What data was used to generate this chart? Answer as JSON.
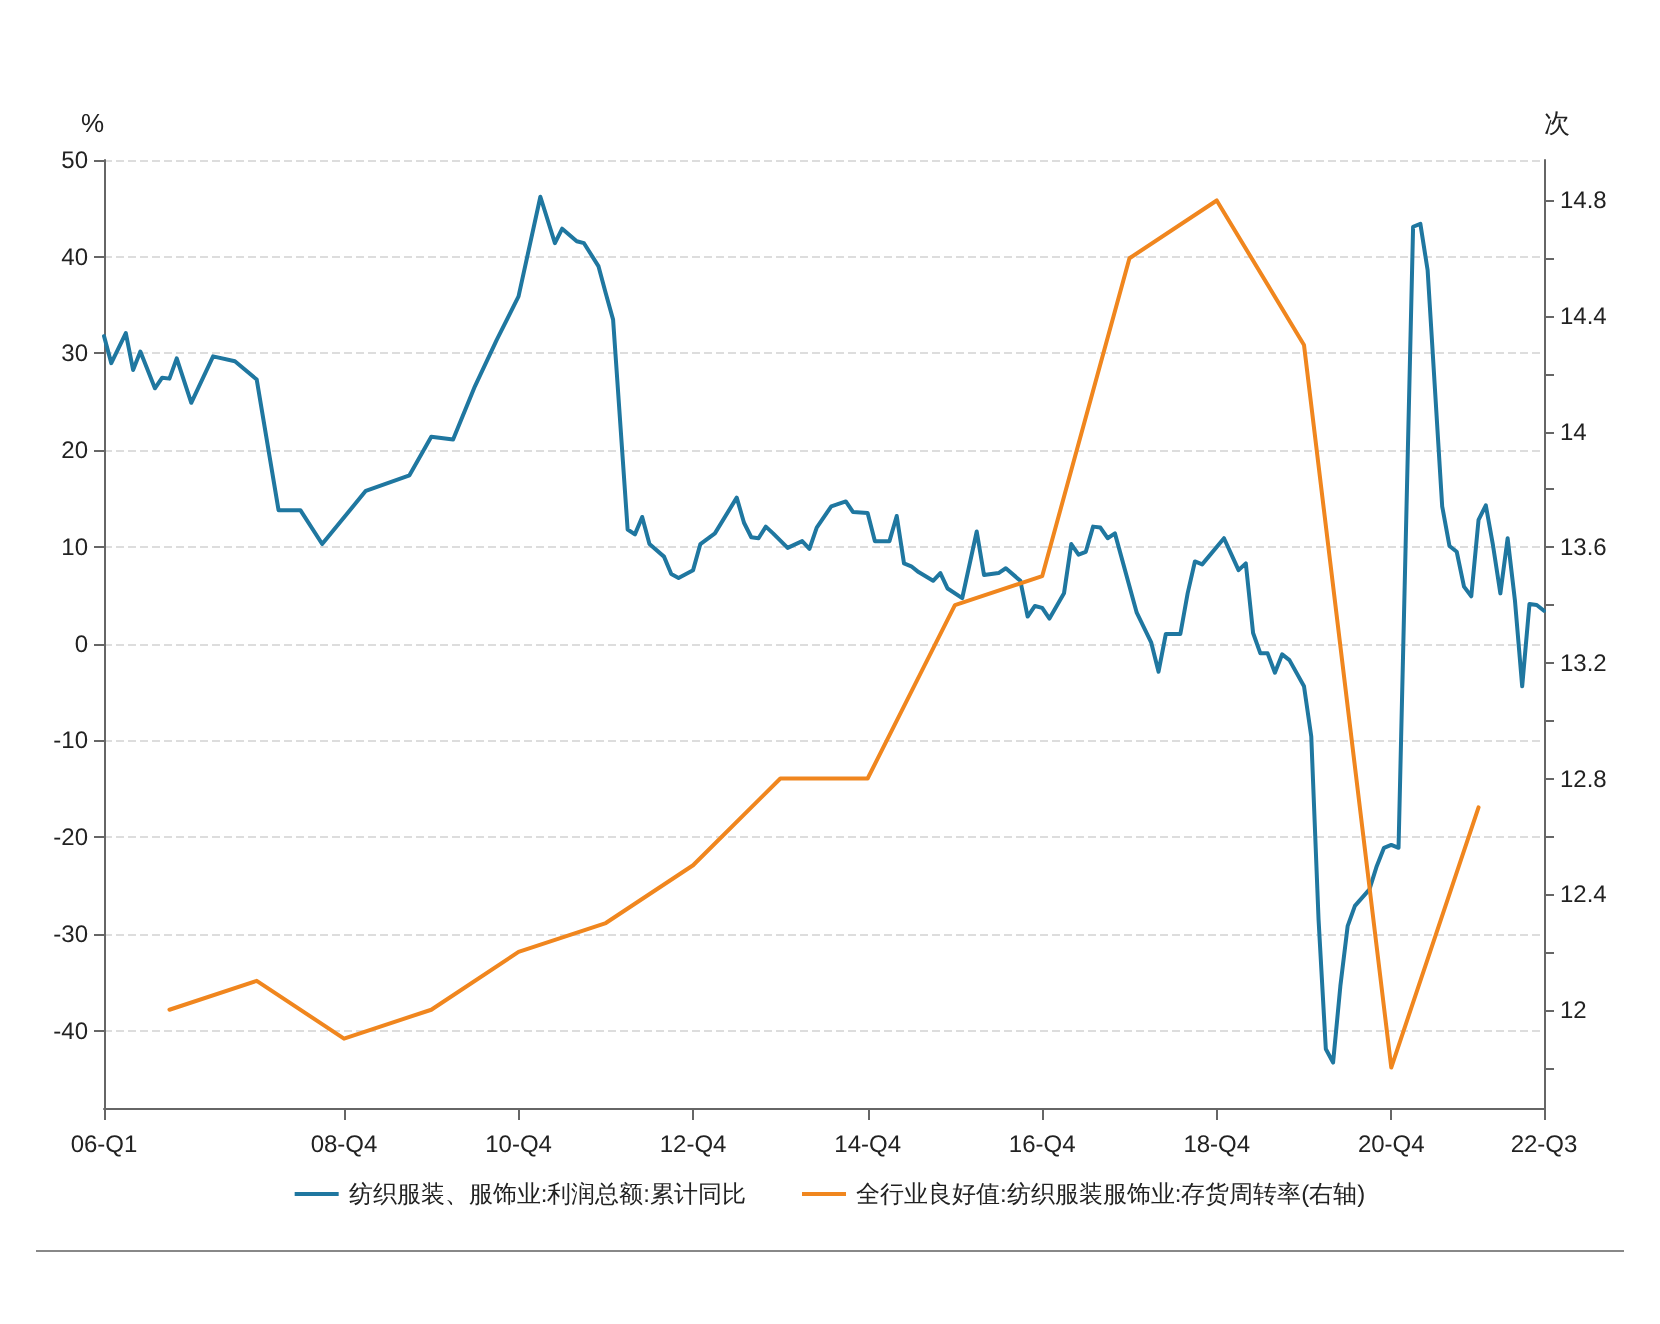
{
  "chart_data": {
    "type": "line",
    "ylabel": "%",
    "y2label": "次",
    "categories": [
      "06-Q1",
      null,
      null,
      null,
      null,
      null,
      null,
      null,
      null,
      null,
      null,
      null,
      null,
      null,
      null,
      null,
      null,
      null,
      null,
      null,
      null,
      null,
      null,
      null,
      null,
      null,
      null,
      null,
      null,
      null,
      null,
      null,
      null,
      "08-Q4",
      null,
      null,
      null,
      null,
      null,
      null,
      null,
      null,
      null,
      null,
      null,
      null,
      null,
      null,
      null,
      null,
      null,
      null,
      null,
      null,
      null,
      null,
      null,
      "10-Q4",
      null,
      null,
      null,
      null,
      null,
      null,
      null,
      null,
      null,
      null,
      null,
      null,
      null,
      null,
      null,
      null,
      null,
      null,
      null,
      null,
      null,
      null,
      null,
      "12-Q4",
      null,
      null,
      null,
      null,
      null,
      null,
      null,
      null,
      null,
      null,
      null,
      null,
      null,
      null,
      null,
      null,
      null,
      null,
      null,
      null,
      null,
      null,
      null,
      "14-Q4",
      null,
      null,
      null,
      null,
      null,
      null,
      null,
      null,
      null,
      null,
      null,
      null,
      null,
      null,
      null,
      null,
      null,
      null,
      null,
      null,
      null,
      null,
      null,
      "16-Q4",
      null,
      null,
      null,
      null,
      null,
      null,
      null,
      null,
      null,
      null,
      null,
      null,
      null,
      null,
      null,
      null,
      null,
      null,
      null,
      null,
      null,
      null,
      null,
      "18-Q4",
      null,
      null,
      null,
      null,
      null,
      null,
      null,
      null,
      null,
      null,
      null,
      null,
      null,
      null,
      null,
      null,
      null,
      null,
      null,
      null,
      null,
      null,
      null,
      "20-Q4",
      null,
      null,
      null,
      null,
      null,
      null,
      null,
      null,
      null,
      null,
      null,
      null,
      null,
      null,
      null,
      null,
      null,
      null,
      null,
      null,
      "22-Q3"
    ],
    "ylim": [
      -48,
      50
    ],
    "yticks": [
      -40,
      -30,
      -20,
      -10,
      0,
      10,
      20,
      30,
      40,
      50
    ],
    "y2lim": [
      11.66,
      14.94
    ],
    "y2ticks": [
      {
        "value": 11.8,
        "label": null
      },
      12,
      {
        "value": 12.2,
        "label": null
      },
      12.4,
      {
        "value": 12.6,
        "label": null
      },
      12.8,
      {
        "value": 13,
        "label": null
      },
      13.2,
      {
        "value": 13.4,
        "label": null
      },
      13.6,
      {
        "value": 13.8,
        "label": null
      },
      14,
      {
        "value": 14.2,
        "label": null
      },
      14.4,
      {
        "value": 14.6,
        "label": null
      },
      14.8
    ],
    "grid": "y",
    "legend": "bottom",
    "marker": "none",
    "line_style": "solid",
    "series": [
      {
        "name": "纺织服装、服饰业:利润总额:累计同比",
        "color": "#1f77a0",
        "values": [
          31.8,
          29.0,
          null,
          32.1,
          28.3,
          30.2,
          null,
          26.4,
          27.5,
          27.4,
          29.5,
          null,
          24.9,
          null,
          null,
          29.7,
          null,
          null,
          29.2,
          null,
          null,
          27.3,
          null,
          null,
          13.8,
          null,
          null,
          13.8,
          null,
          null,
          10.3,
          null,
          null,
          null,
          null,
          null,
          15.8,
          null,
          null,
          null,
          null,
          null,
          17.4,
          null,
          null,
          21.4,
          null,
          null,
          21.1,
          null,
          null,
          26.6,
          null,
          null,
          31.4,
          null,
          null,
          35.9,
          null,
          null,
          46.2,
          null,
          41.4,
          42.9,
          null,
          41.6,
          41.4,
          null,
          39.0,
          36.2,
          33.5,
          null,
          11.8,
          11.3,
          13.1,
          10.3,
          null,
          9.0,
          7.2,
          6.8,
          null,
          7.6,
          10.3,
          null,
          11.4,
          null,
          null,
          15.1,
          12.5,
          11.0,
          10.9,
          12.1,
          11.4,
          null,
          9.9,
          null,
          10.6,
          9.8,
          12.0,
          null,
          14.2,
          null,
          14.7,
          13.6,
          null,
          13.5,
          10.6,
          null,
          10.6,
          13.2,
          8.3,
          8.0,
          7.4,
          null,
          6.5,
          7.3,
          5.7,
          null,
          4.7,
          null,
          11.6,
          7.1,
          null,
          7.3,
          7.8,
          null,
          6.5,
          2.8,
          3.9,
          3.7,
          2.6,
          null,
          5.2,
          10.3,
          9.2,
          9.5,
          12.1,
          12.0,
          10.9,
          11.4,
          null,
          null,
          3.2,
          null,
          0.1,
          -2.9,
          1.0,
          null,
          1.0,
          5.2,
          8.5,
          8.2,
          null,
          null,
          10.9,
          null,
          7.6,
          8.3,
          1.1,
          -1.0,
          -1.0,
          -3.0,
          -1.1,
          -1.7,
          null,
          -4.4,
          -9.6,
          -28.5,
          -41.9,
          -43.3,
          -35.4,
          -29.2,
          -27.1,
          null,
          -25.4,
          -23.0,
          -21.1,
          -20.8,
          -21.1,
          null,
          43.1,
          43.4,
          38.6,
          null,
          14.2,
          10.1,
          9.5,
          5.9,
          4.9,
          12.8,
          14.3,
          10.1,
          5.2,
          10.9,
          4.5,
          -4.4,
          4.1,
          4.0,
          3.4
        ]
      },
      {
        "name": "全行业良好值:纺织服装服饰业:存货周转率(右轴)",
        "color": "#f0861e",
        "axis": "y2",
        "values": [
          null,
          null,
          null,
          null,
          null,
          null,
          null,
          null,
          null,
          12.0,
          null,
          null,
          null,
          null,
          null,
          null,
          null,
          null,
          null,
          null,
          null,
          12.1,
          null,
          null,
          null,
          null,
          null,
          null,
          null,
          null,
          null,
          null,
          null,
          11.9,
          null,
          null,
          null,
          null,
          null,
          null,
          null,
          null,
          null,
          null,
          null,
          12.0,
          null,
          null,
          null,
          null,
          null,
          null,
          null,
          null,
          null,
          null,
          null,
          12.2,
          null,
          null,
          null,
          null,
          null,
          null,
          null,
          null,
          null,
          null,
          null,
          12.3,
          null,
          null,
          null,
          null,
          null,
          null,
          null,
          null,
          null,
          null,
          null,
          12.5,
          null,
          null,
          null,
          null,
          null,
          null,
          null,
          null,
          null,
          null,
          null,
          12.8,
          null,
          null,
          null,
          null,
          null,
          null,
          null,
          null,
          null,
          null,
          null,
          12.8,
          null,
          null,
          null,
          null,
          null,
          null,
          null,
          null,
          null,
          null,
          null,
          13.4,
          null,
          null,
          null,
          null,
          null,
          null,
          null,
          null,
          null,
          null,
          null,
          13.5,
          null,
          null,
          null,
          null,
          null,
          null,
          null,
          null,
          null,
          null,
          null,
          14.6,
          null,
          null,
          null,
          null,
          null,
          null,
          null,
          null,
          null,
          null,
          null,
          14.8,
          null,
          null,
          null,
          null,
          null,
          null,
          null,
          null,
          null,
          null,
          null,
          14.3,
          null,
          null,
          null,
          null,
          null,
          null,
          null,
          null,
          null,
          null,
          null,
          11.8,
          null,
          null,
          null,
          null,
          null,
          null,
          null,
          null,
          null,
          null,
          null,
          12.7,
          null,
          null,
          null,
          null,
          null,
          null,
          null,
          null,
          null
        ]
      }
    ]
  }
}
